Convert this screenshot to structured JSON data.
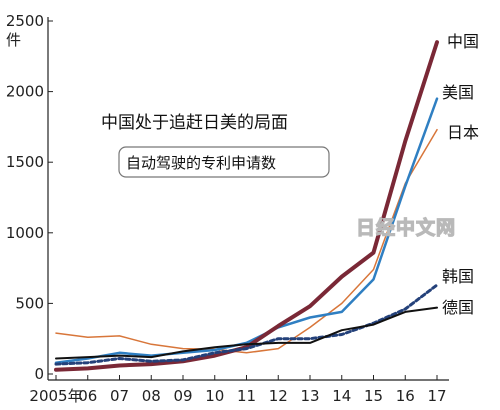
{
  "chart_data": {
    "type": "line",
    "title": "中国处于追赶日美的局面",
    "subtitle": "自动驾驶的专利申请数",
    "ylabel": "件",
    "ylim": [
      0,
      2500
    ],
    "yticks": [
      "0",
      "500",
      "1000",
      "1500",
      "2000",
      "2500"
    ],
    "yticks_values": [
      0,
      500,
      1000,
      1500,
      2000,
      2500
    ],
    "x": [
      2005,
      2006,
      2007,
      2008,
      2009,
      2010,
      2011,
      2012,
      2013,
      2014,
      2015,
      2016,
      2017
    ],
    "xtick_labels": [
      "2005年",
      "06",
      "07",
      "08",
      "09",
      "10",
      "11",
      "12",
      "13",
      "14",
      "15",
      "16",
      "17"
    ],
    "grid": false,
    "watermark": "日经中文网",
    "series": [
      {
        "name": "日本",
        "color": "#d8763a",
        "dash": "",
        "width": 1.5,
        "values": [
          290,
          260,
          270,
          210,
          180,
          175,
          150,
          180,
          330,
          500,
          740,
          1350,
          1730
        ]
      },
      {
        "name": "美国",
        "color": "#2f7fc2",
        "dash": "",
        "width": 2.5,
        "values": [
          80,
          110,
          150,
          130,
          150,
          170,
          220,
          330,
          400,
          440,
          670,
          1330,
          1950
        ]
      },
      {
        "name": "中国",
        "color": "#7a2836",
        "dash": "",
        "width": 4,
        "values": [
          30,
          40,
          60,
          70,
          90,
          130,
          190,
          340,
          480,
          690,
          860,
          1650,
          2350
        ]
      },
      {
        "name": "韩国",
        "color": "#24417a",
        "dash": "4,3",
        "width": 3,
        "values": [
          70,
          80,
          110,
          90,
          100,
          150,
          180,
          250,
          250,
          280,
          360,
          460,
          630
        ]
      },
      {
        "name": "德国",
        "color": "#111111",
        "dash": "",
        "width": 2,
        "values": [
          110,
          120,
          130,
          120,
          160,
          190,
          210,
          220,
          220,
          310,
          350,
          440,
          470
        ]
      }
    ],
    "label_order": [
      "中国",
      "美国",
      "日本",
      "韩国",
      "德国"
    ]
  }
}
